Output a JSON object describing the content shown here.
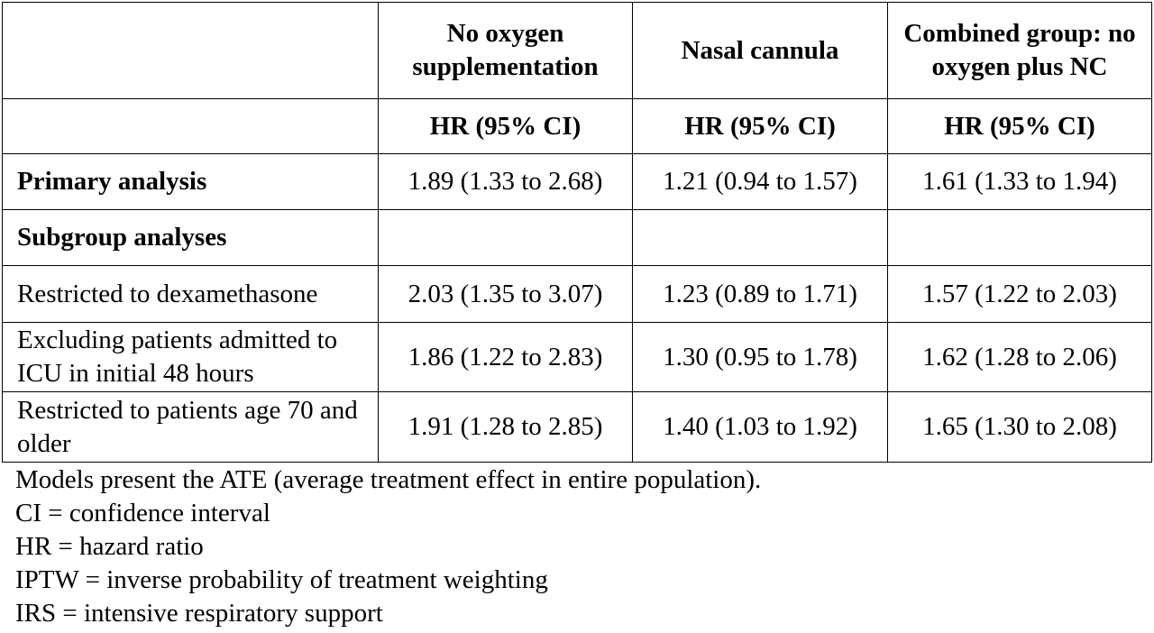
{
  "columns": {
    "col1_header": "No oxygen supplementation",
    "col2_header": "Nasal cannula",
    "col3_header": "Combined group: no oxygen plus NC",
    "col1_sub": "HR (95% CI)",
    "col2_sub": "HR (95% CI)",
    "col3_sub": "HR (95% CI)"
  },
  "rows": {
    "primary": {
      "label": "Primary analysis",
      "v1": "1.89 (1.33 to 2.68)",
      "v2": "1.21 (0.94 to 1.57)",
      "v3": "1.61 (1.33 to 1.94)"
    },
    "subgroup": {
      "label": "Subgroup analyses"
    },
    "dexamethasone": {
      "label": "Restricted to dexamethasone",
      "v1": "2.03 (1.35 to 3.07)",
      "v2": "1.23 (0.89 to 1.71)",
      "v3": "1.57 (1.22 to 2.03)"
    },
    "excluding_icu": {
      "label": "Excluding patients admitted to ICU in initial 48 hours",
      "v1": "1.86 (1.22 to 2.83)",
      "v2": "1.30 (0.95 to 1.78)",
      "v3": "1.62 (1.28 to 2.06)"
    },
    "age70": {
      "label": "Restricted to patients age 70 and older",
      "v1": "1.91 (1.28 to 2.85)",
      "v2": "1.40 (1.03 to 1.92)",
      "v3": "1.65 (1.30 to 2.08)"
    }
  },
  "footnotes": [
    "Models present the ATE (average treatment effect in entire population).",
    "CI = confidence interval",
    "HR = hazard ratio",
    "IPTW = inverse probability of treatment weighting",
    "IRS = intensive respiratory support"
  ]
}
